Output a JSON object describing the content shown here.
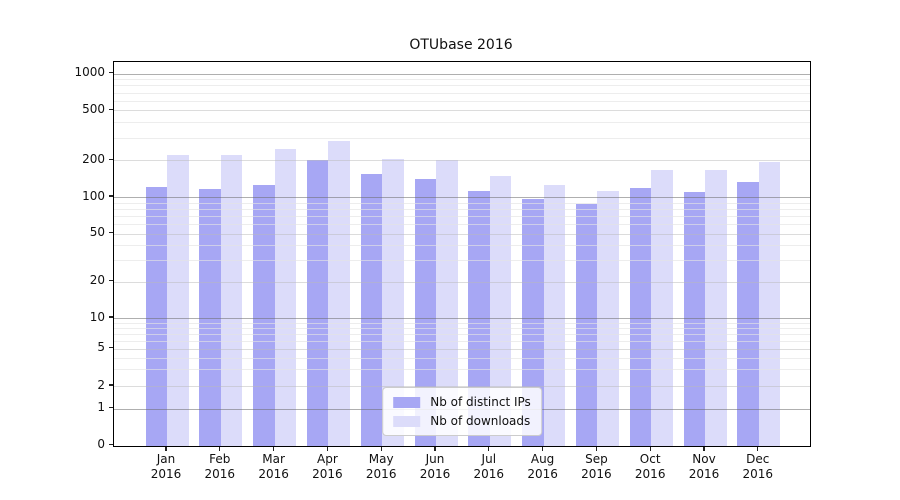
{
  "title": "OTUbase 2016",
  "chart_data": {
    "type": "bar",
    "title": "OTUbase 2016",
    "categories": [
      "Jan 2016",
      "Feb 2016",
      "Mar 2016",
      "Apr 2016",
      "May 2016",
      "Jun 2016",
      "Jul 2016",
      "Aug 2016",
      "Sep 2016",
      "Oct 2016",
      "Nov 2016",
      "Dec 2016"
    ],
    "series": [
      {
        "name": "Nb of distinct IPs",
        "color": "#a7a7f4",
        "values": [
          120,
          116,
          126,
          200,
          153,
          140,
          112,
          97,
          87,
          119,
          110,
          133
        ]
      },
      {
        "name": "Nb of downloads",
        "color": "#dcdcfa",
        "values": [
          222,
          220,
          245,
          285,
          205,
          202,
          150,
          125,
          112,
          167,
          167,
          192
        ]
      }
    ],
    "xlabel": "",
    "ylabel": "",
    "yscale": "symlog",
    "yticks": [
      0,
      1,
      2,
      5,
      10,
      20,
      50,
      100,
      200,
      500,
      1000
    ],
    "ylim": [
      0,
      1250
    ],
    "grid": true,
    "legend_position": "lower center"
  }
}
